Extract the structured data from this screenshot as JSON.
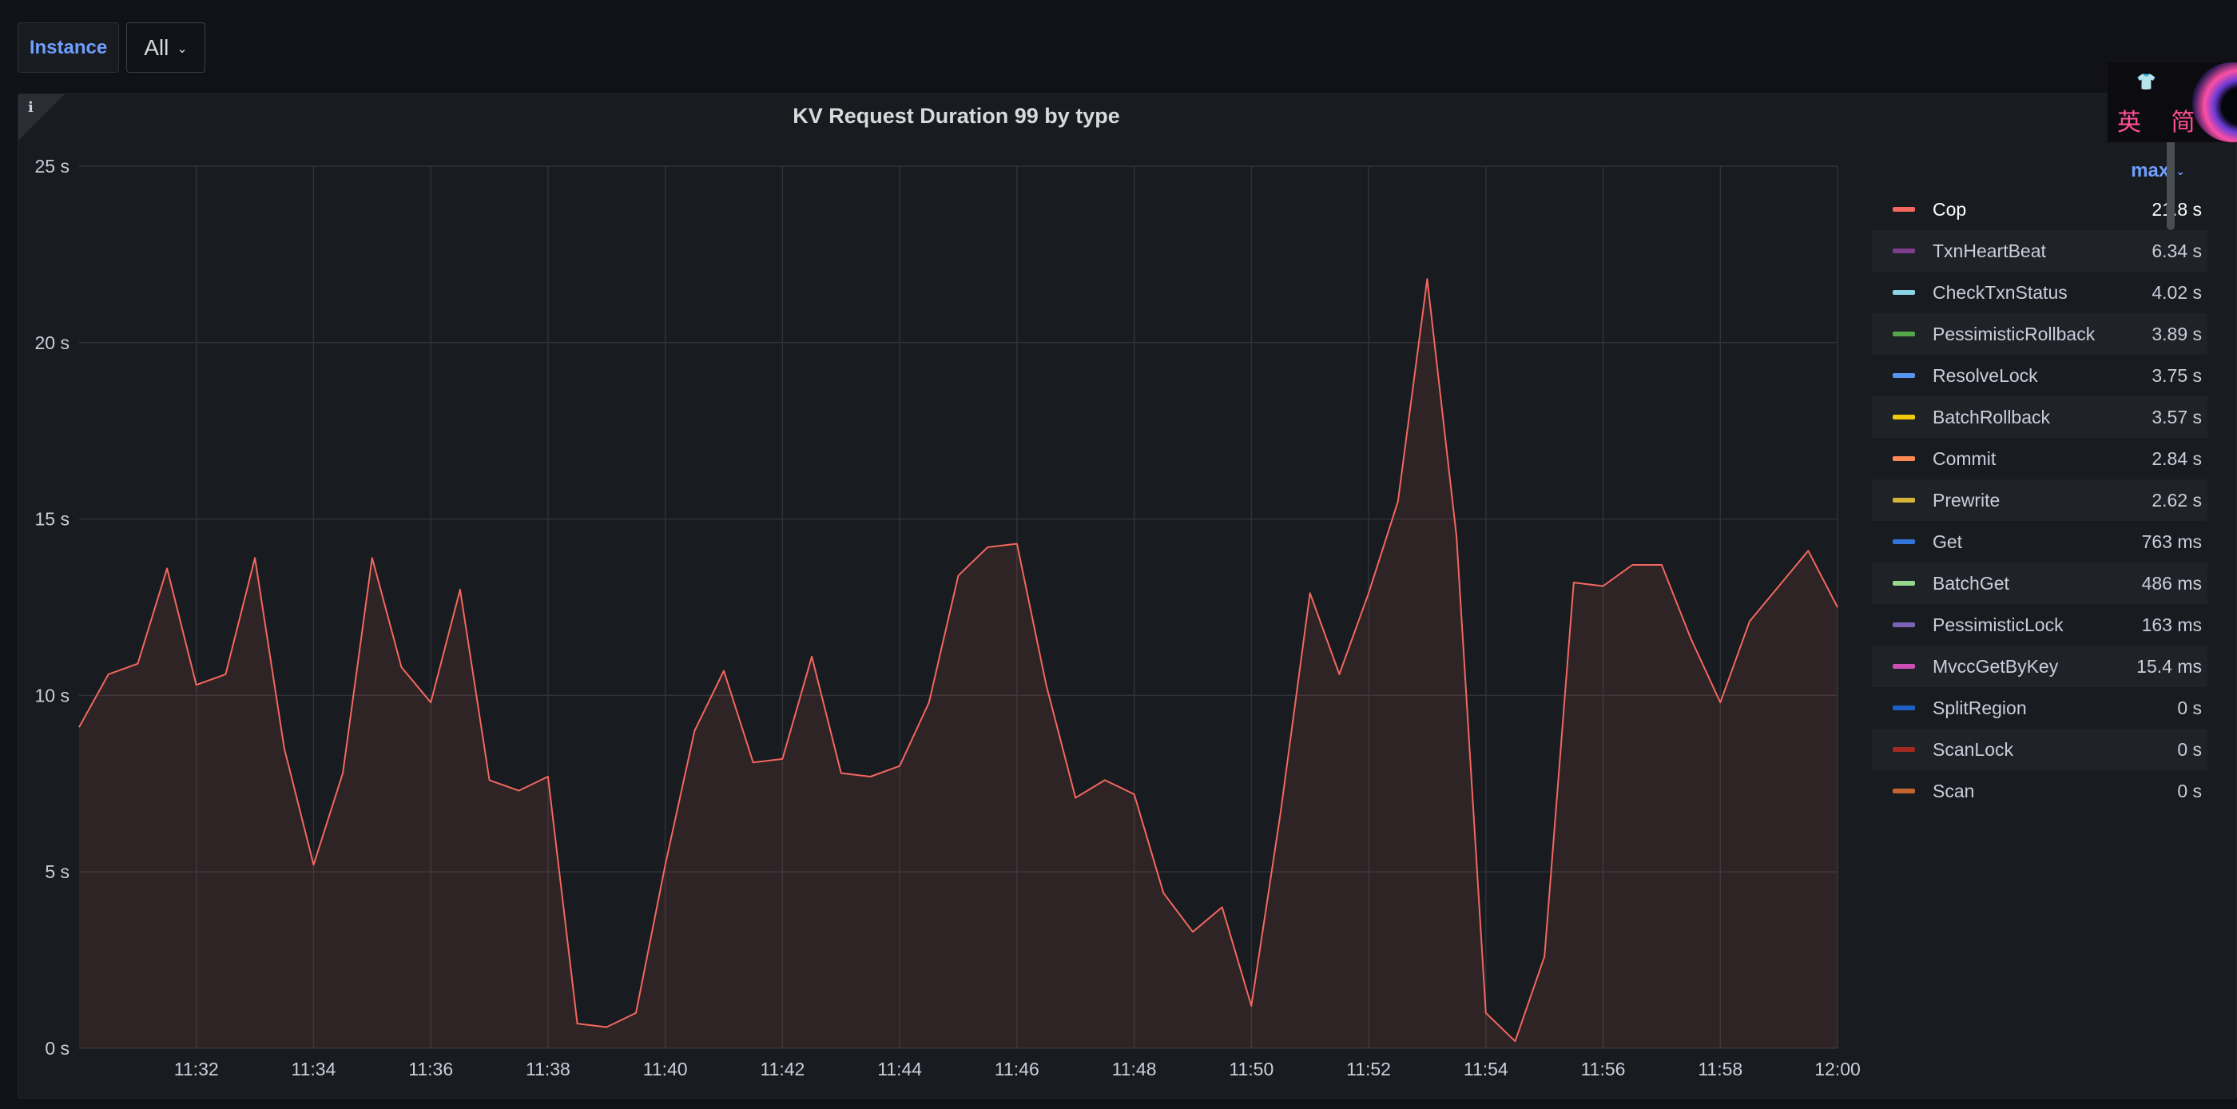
{
  "variables": {
    "instance_label": "Instance",
    "instance_value": "All"
  },
  "panel": {
    "title": "KV Request Duration 99 by type",
    "info_icon": "info-icon"
  },
  "logo": {
    "text": "英 简"
  },
  "legend": {
    "sort_label": "max",
    "items": [
      {
        "name": "Cop",
        "value": "21.8 s",
        "color": "#f2675f"
      },
      {
        "name": "TxnHeartBeat",
        "value": "6.34 s",
        "color": "#7e3e8c"
      },
      {
        "name": "CheckTxnStatus",
        "value": "4.02 s",
        "color": "#8ad4e6"
      },
      {
        "name": "PessimisticRollback",
        "value": "3.89 s",
        "color": "#56a64b"
      },
      {
        "name": "ResolveLock",
        "value": "3.75 s",
        "color": "#5794f2"
      },
      {
        "name": "BatchRollback",
        "value": "3.57 s",
        "color": "#f2cc0c"
      },
      {
        "name": "Commit",
        "value": "2.84 s",
        "color": "#ff8a54"
      },
      {
        "name": "Prewrite",
        "value": "2.62 s",
        "color": "#d5b43a"
      },
      {
        "name": "Get",
        "value": "763 ms",
        "color": "#3274d9"
      },
      {
        "name": "BatchGet",
        "value": "486 ms",
        "color": "#96d98d"
      },
      {
        "name": "PessimisticLock",
        "value": "163 ms",
        "color": "#7c62b6"
      },
      {
        "name": "MvccGetByKey",
        "value": "15.4 ms",
        "color": "#cc4fb4"
      },
      {
        "name": "SplitRegion",
        "value": "0 s",
        "color": "#1f60c4"
      },
      {
        "name": "ScanLock",
        "value": "0 s",
        "color": "#a32a20"
      },
      {
        "name": "Scan",
        "value": "0 s",
        "color": "#c4652f"
      }
    ]
  },
  "chart_data": {
    "type": "area",
    "title": "KV Request Duration 99 by type",
    "xlabel": "",
    "ylabel": "",
    "yticks": [
      "0 s",
      "5 s",
      "10 s",
      "15 s",
      "20 s",
      "25 s"
    ],
    "ylim": [
      0,
      25
    ],
    "xticks": [
      "11:32",
      "11:34",
      "11:36",
      "11:38",
      "11:40",
      "11:42",
      "11:44",
      "11:46",
      "11:48",
      "11:50",
      "11:52",
      "11:54",
      "11:56",
      "11:58",
      "12:00"
    ],
    "x": [
      "11:30",
      "11:30:30",
      "11:31",
      "11:31:30",
      "11:32",
      "11:32:30",
      "11:33",
      "11:33:30",
      "11:34",
      "11:34:30",
      "11:35",
      "11:35:30",
      "11:36",
      "11:36:30",
      "11:37",
      "11:37:30",
      "11:38",
      "11:38:30",
      "11:39",
      "11:39:30",
      "11:40",
      "11:40:30",
      "11:41",
      "11:41:30",
      "11:42",
      "11:42:30",
      "11:43",
      "11:43:30",
      "11:44",
      "11:44:30",
      "11:45",
      "11:45:30",
      "11:46",
      "11:46:30",
      "11:47",
      "11:47:30",
      "11:48",
      "11:48:30",
      "11:49",
      "11:49:30",
      "11:50",
      "11:50:30",
      "11:51",
      "11:51:30",
      "11:52",
      "11:52:30",
      "11:53",
      "11:53:30",
      "11:54",
      "11:54:30",
      "11:55",
      "11:55:30",
      "11:56",
      "11:56:30",
      "11:57",
      "11:57:30",
      "11:58",
      "11:58:30",
      "11:59",
      "11:59:30",
      "12:00"
    ],
    "series": [
      {
        "name": "Cop",
        "color": "#f2675f",
        "values": [
          9.1,
          10.6,
          10.9,
          13.6,
          10.3,
          10.6,
          13.9,
          8.5,
          5.2,
          7.8,
          13.9,
          10.8,
          9.8,
          13.0,
          7.6,
          7.3,
          7.7,
          0.7,
          0.6,
          1.0,
          5.2,
          9.0,
          10.7,
          8.1,
          8.2,
          11.1,
          7.8,
          7.7,
          8.0,
          9.8,
          13.4,
          14.2,
          14.3,
          10.3,
          7.1,
          7.6,
          7.2,
          4.4,
          3.3,
          4.0,
          1.2,
          6.7,
          12.9,
          10.6,
          12.9,
          15.5,
          21.8,
          14.5,
          1.0,
          0.2,
          2.6,
          13.2,
          13.1,
          13.7,
          13.7,
          11.6,
          9.8,
          12.1,
          13.1,
          14.1,
          12.5
        ]
      }
    ],
    "grid": true,
    "legend_position": "right"
  }
}
